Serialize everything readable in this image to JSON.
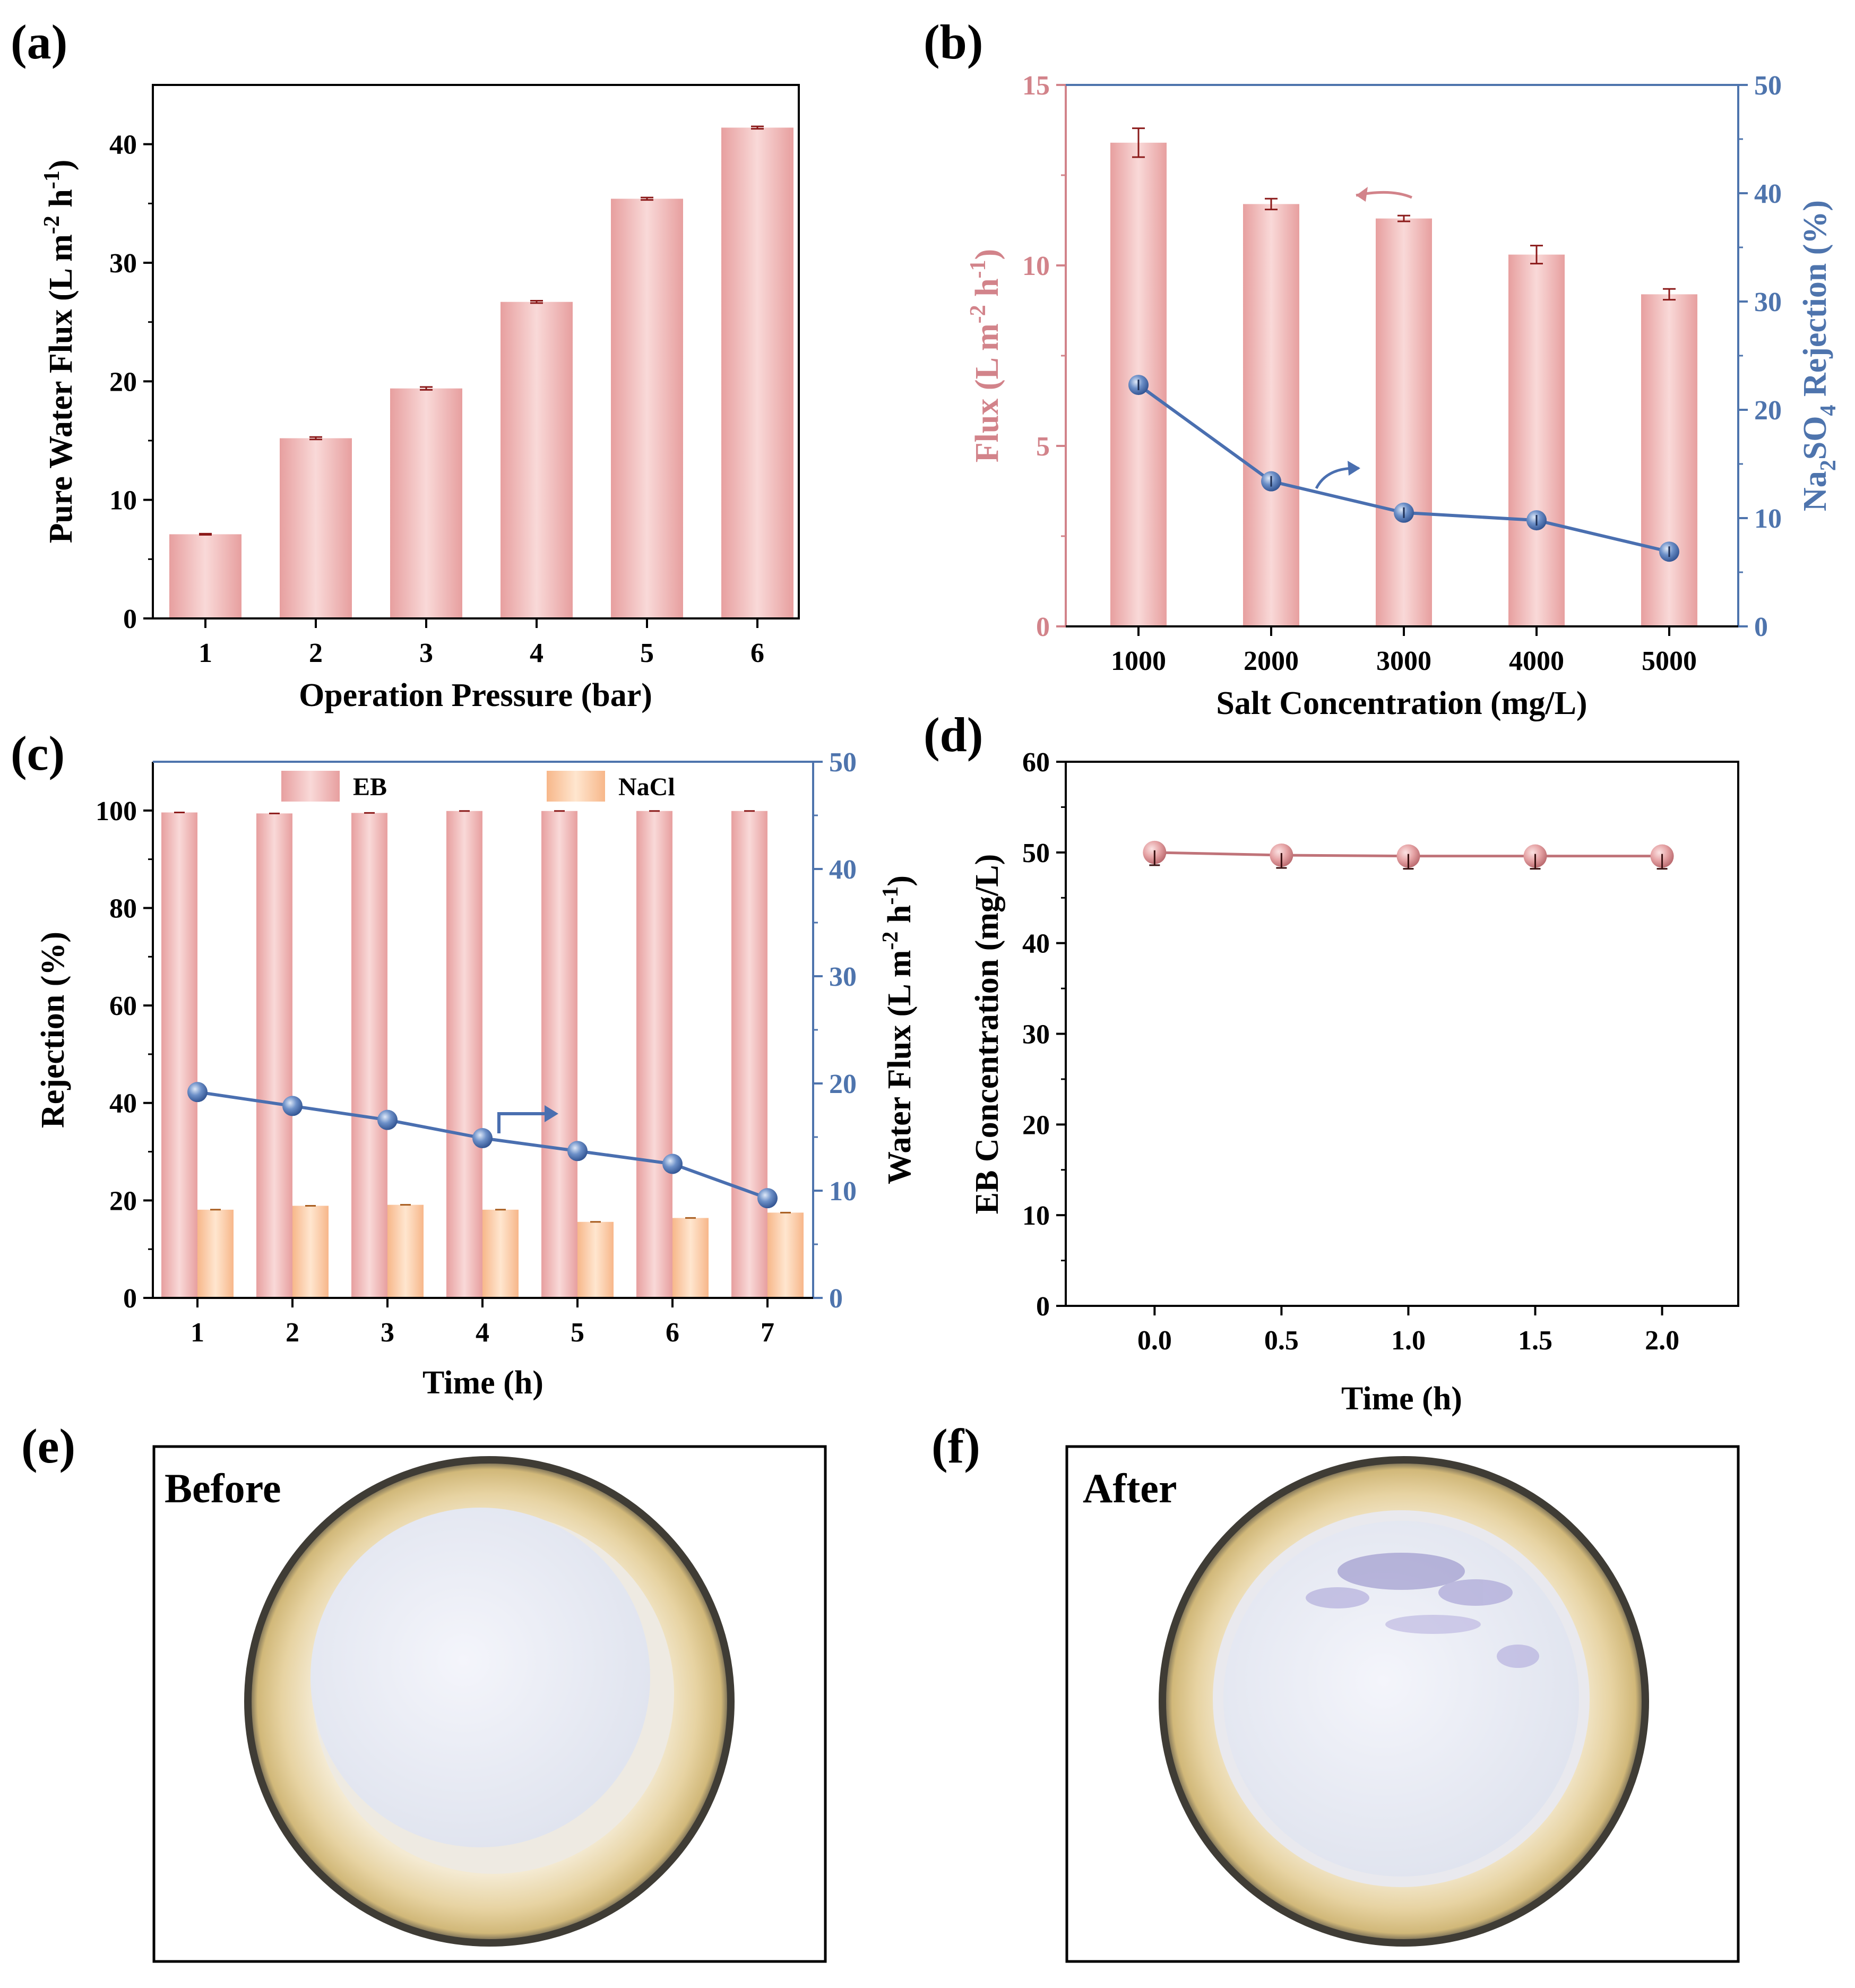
{
  "colors": {
    "bar_edge": "#c98385",
    "bar_center": "#f6d0cf",
    "bar_side": "#e79f9f",
    "nacl_center": "#ffe3c8",
    "nacl_side": "#f7b78a",
    "line_blue": "#4a6fb0",
    "marker_blue": "#6d90c8",
    "axis_blue": "#4e74ad",
    "axis_pink": "#d2838a",
    "errbar": "#8b1a1a"
  },
  "chart_data": [
    {
      "panel": "(a)",
      "type": "bar",
      "categories": [
        "1",
        "2",
        "3",
        "4",
        "5",
        "6"
      ],
      "values": [
        7.1,
        15.2,
        19.4,
        26.7,
        35.4,
        41.4
      ],
      "errors": [
        0.05,
        0.1,
        0.12,
        0.1,
        0.1,
        0.1
      ],
      "xlabel": "Operation Pressure (bar)",
      "ylabel": "Pure Water Flux (L m",
      "ylabel_sup1": "-2",
      "ylabel_mid": " h",
      "ylabel_sup2": "-1",
      "ylabel_end": ")",
      "ylim": [
        0,
        45
      ],
      "yticks": [
        "0",
        "10",
        "20",
        "30",
        "40"
      ]
    },
    {
      "panel": "(b)",
      "type": "bar+line",
      "categories": [
        "1000",
        "2000",
        "3000",
        "4000",
        "5000"
      ],
      "series": [
        {
          "name": "Flux",
          "axis": "left",
          "type": "bar",
          "values": [
            13.4,
            11.7,
            11.3,
            10.3,
            9.2
          ],
          "errors": [
            0.4,
            0.15,
            0.08,
            0.25,
            0.15
          ]
        },
        {
          "name": "Na2SO4 Rejection",
          "axis": "right",
          "type": "line",
          "values": [
            22.3,
            13.4,
            10.5,
            9.8,
            6.9
          ]
        }
      ],
      "xlabel": "Salt Concentration (mg/L)",
      "ylabel_left": "Flux (L m",
      "ylabel_left_sup1": "-2",
      "ylabel_left_mid": " h",
      "ylabel_left_sup2": "-1",
      "ylabel_left_end": ")",
      "ylabel_right_a": "Na",
      "ylabel_right_sub1": "2",
      "ylabel_right_b": "SO",
      "ylabel_right_sub2": "4",
      "ylabel_right_c": " Rejection (%)",
      "ylim_left": [
        0,
        15
      ],
      "ylim_right": [
        0,
        50
      ],
      "yticks_left": [
        "0",
        "5",
        "10",
        "15"
      ],
      "yticks_right": [
        "0",
        "10",
        "20",
        "30",
        "40",
        "50"
      ]
    },
    {
      "panel": "(c)",
      "type": "bar+line",
      "categories": [
        "1",
        "2",
        "3",
        "4",
        "5",
        "6",
        "7"
      ],
      "series": [
        {
          "name": "EB",
          "axis": "left",
          "type": "bar",
          "values": [
            99.6,
            99.4,
            99.5,
            99.9,
            99.9,
            99.9,
            99.9
          ]
        },
        {
          "name": "NaCl",
          "axis": "left",
          "type": "bar",
          "values": [
            18.1,
            18.9,
            19.1,
            18.1,
            15.6,
            16.4,
            17.5
          ]
        },
        {
          "name": "Water Flux",
          "axis": "right",
          "type": "line",
          "values": [
            19.2,
            17.9,
            16.6,
            14.9,
            13.7,
            12.5,
            9.3
          ]
        }
      ],
      "legend": [
        "EB",
        "NaCl"
      ],
      "xlabel": "Time (h)",
      "ylabel_left": "Rejection (%)",
      "ylabel_right": "Water Flux (L m",
      "ylabel_right_sup1": "-2",
      "ylabel_right_mid": " h",
      "ylabel_right_sup2": "-1",
      "ylabel_right_end": ")",
      "ylim_left": [
        0,
        110
      ],
      "ylim_right": [
        0,
        50
      ],
      "yticks_left": [
        "0",
        "20",
        "40",
        "60",
        "80",
        "100"
      ],
      "yticks_right": [
        "0",
        "10",
        "20",
        "30",
        "40",
        "50"
      ]
    },
    {
      "panel": "(d)",
      "type": "line",
      "x": [
        0.0,
        0.5,
        1.0,
        1.5,
        2.0
      ],
      "y": [
        50.0,
        49.7,
        49.6,
        49.6,
        49.6
      ],
      "xticks": [
        "0.0",
        "0.5",
        "1.0",
        "1.5",
        "2.0"
      ],
      "yticks": [
        "0",
        "10",
        "20",
        "30",
        "40",
        "50",
        "60"
      ],
      "xlabel": "Time (h)",
      "ylabel": "EB Concentration (mg/L)",
      "xlim": [
        -0.35,
        2.3
      ],
      "ylim": [
        0,
        60
      ]
    }
  ],
  "photos": {
    "e_label": "(e)",
    "e_caption": "Before",
    "f_label": "(f)",
    "f_caption": "After"
  }
}
